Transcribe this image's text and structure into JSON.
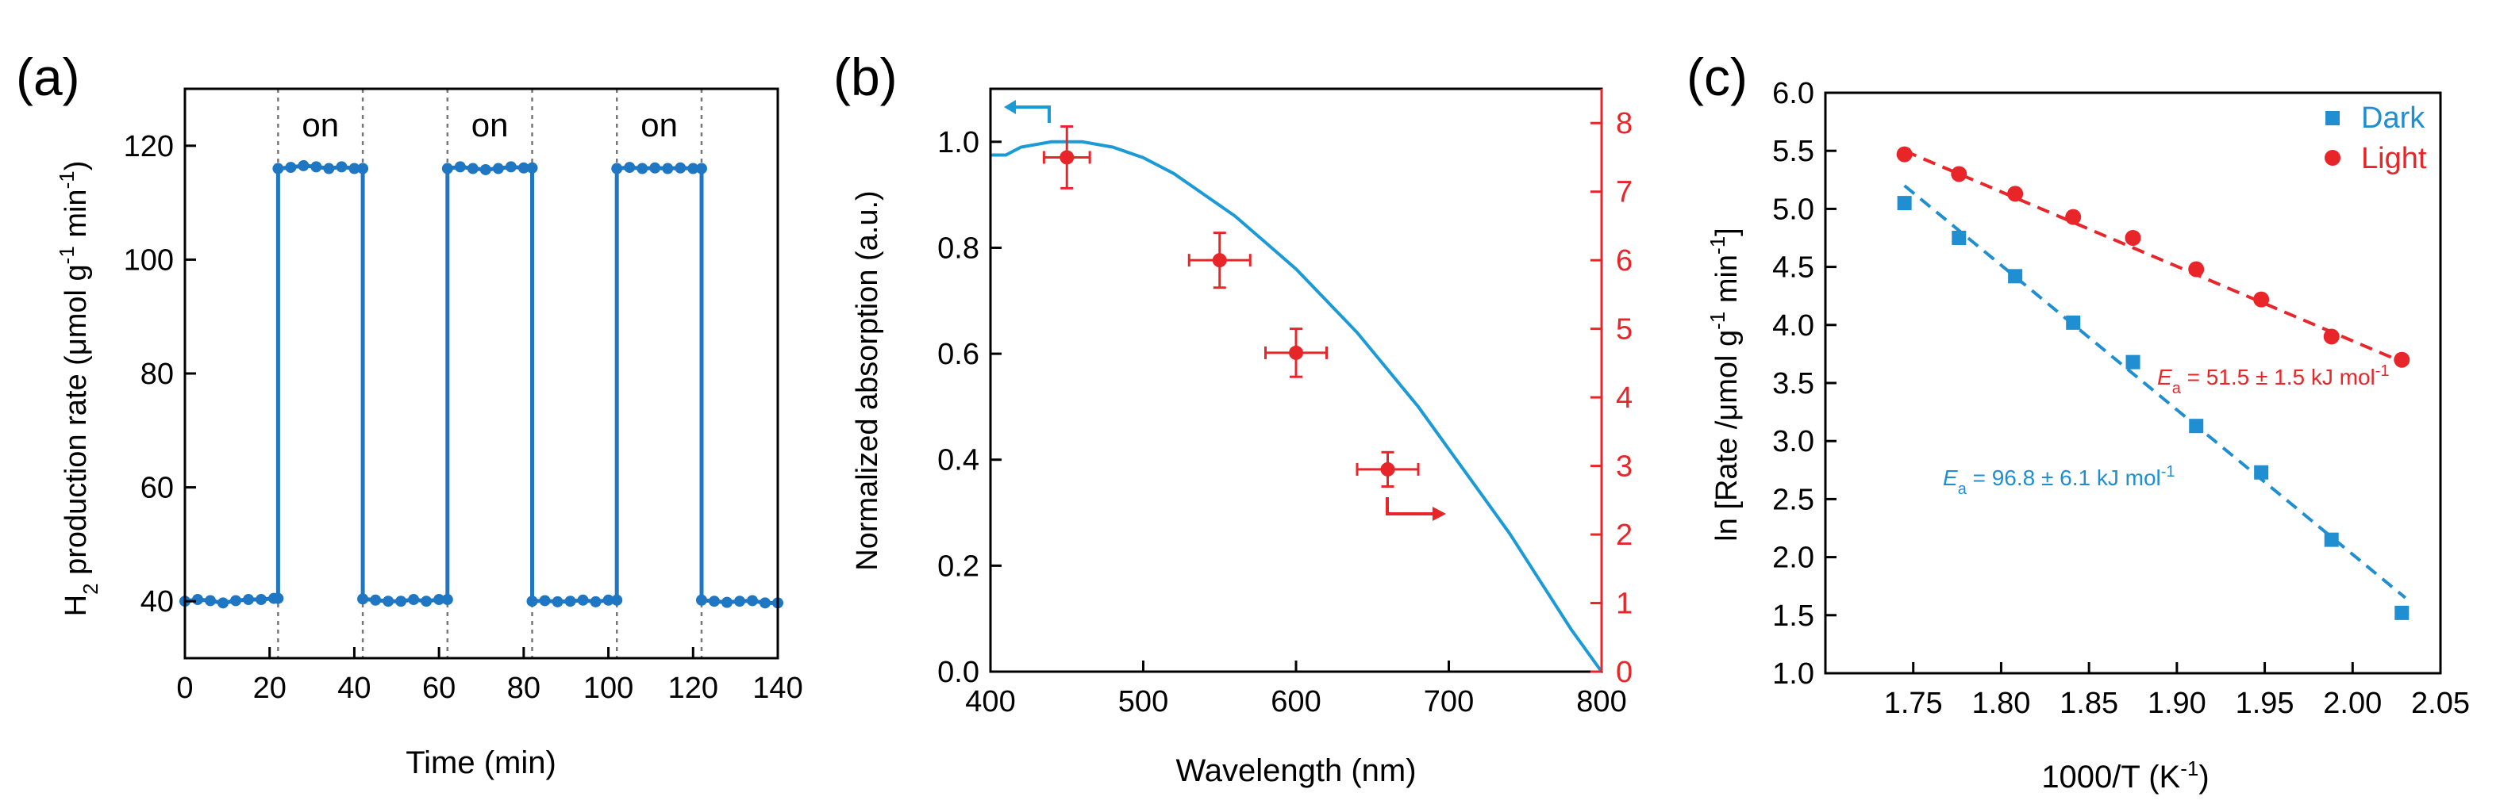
{
  "chart_data": [
    {
      "panel_label": "(a)",
      "type": "line",
      "xlabel": "Time (min)",
      "ylabel_prefix": "H",
      "ylabel_sub": "2",
      "ylabel_main": " production rate (μmol g",
      "ylabel_sup1": "-1",
      "ylabel_mid": " min",
      "ylabel_sup2": "-1",
      "ylabel_end": ")",
      "xlim": [
        0,
        140
      ],
      "ylim": [
        30,
        130
      ],
      "xticks": [
        0,
        20,
        40,
        60,
        80,
        100,
        120,
        140
      ],
      "yticks": [
        40,
        60,
        80,
        100,
        120
      ],
      "on_label": "on",
      "on_intervals": [
        [
          22,
          42
        ],
        [
          62,
          82
        ],
        [
          102,
          122
        ]
      ],
      "divider_x": [
        22,
        42,
        62,
        82,
        102,
        122
      ],
      "series": [
        {
          "name": "H2 production rate",
          "color": "#1f77c4",
          "points": [
            [
              0,
              40
            ],
            [
              3,
              40.3
            ],
            [
              6,
              40.1
            ],
            [
              9,
              39.7
            ],
            [
              12,
              40.1
            ],
            [
              15,
              40.3
            ],
            [
              18,
              40.3
            ],
            [
              21,
              40.5
            ],
            [
              22,
              40.5
            ],
            [
              22,
              116
            ],
            [
              25,
              116.2
            ],
            [
              28,
              116.5
            ],
            [
              31,
              116.3
            ],
            [
              34,
              116
            ],
            [
              37,
              116.3
            ],
            [
              40,
              116
            ],
            [
              42,
              116
            ],
            [
              42,
              40.4
            ],
            [
              45,
              40.2
            ],
            [
              48,
              40
            ],
            [
              51,
              40
            ],
            [
              54,
              40.3
            ],
            [
              57,
              40
            ],
            [
              60,
              40.3
            ],
            [
              62,
              40.3
            ],
            [
              62,
              116
            ],
            [
              65,
              116.3
            ],
            [
              68,
              116
            ],
            [
              71,
              115.8
            ],
            [
              74,
              116
            ],
            [
              77,
              116.3
            ],
            [
              80,
              116.1
            ],
            [
              82,
              116.1
            ],
            [
              82,
              40
            ],
            [
              85,
              40.1
            ],
            [
              88,
              39.9
            ],
            [
              91,
              40
            ],
            [
              94,
              40.2
            ],
            [
              97,
              39.9
            ],
            [
              100,
              40.2
            ],
            [
              102,
              40.2
            ],
            [
              102,
              116
            ],
            [
              105,
              116.2
            ],
            [
              108,
              116
            ],
            [
              111,
              116.1
            ],
            [
              114,
              116
            ],
            [
              117,
              116.1
            ],
            [
              120,
              116
            ],
            [
              122,
              116
            ],
            [
              122,
              40.2
            ],
            [
              125,
              40
            ],
            [
              128,
              39.8
            ],
            [
              131,
              40
            ],
            [
              134,
              40.1
            ],
            [
              137,
              39.7
            ],
            [
              140,
              39.7
            ]
          ]
        }
      ]
    },
    {
      "panel_label": "(b)",
      "type": "line+scatter",
      "xlabel": "Wavelength (nm)",
      "ylabel_left": "Normalized absorption (a.u.)",
      "xlim": [
        400,
        800
      ],
      "ylim_left": [
        0,
        1.1
      ],
      "ylim_right": [
        0,
        8.5
      ],
      "xticks": [
        400,
        500,
        600,
        700,
        800
      ],
      "yticks_left": [
        "0.0",
        "0.2",
        "0.4",
        "0.6",
        "0.8",
        "1.0"
      ],
      "yticks_right": [
        0,
        1,
        2,
        3,
        4,
        5,
        6,
        7,
        8
      ],
      "left_color": "#1a9ad6",
      "right_color": "#e8262a",
      "absorption_curve": {
        "name": "Normalized absorption",
        "color": "#1a9ad6",
        "points": [
          [
            400,
            0.975
          ],
          [
            410,
            0.975
          ],
          [
            420,
            0.99
          ],
          [
            440,
            1.0
          ],
          [
            460,
            1.0
          ],
          [
            480,
            0.99
          ],
          [
            500,
            0.97
          ],
          [
            520,
            0.94
          ],
          [
            540,
            0.9
          ],
          [
            560,
            0.86
          ],
          [
            580,
            0.81
          ],
          [
            600,
            0.76
          ],
          [
            620,
            0.7
          ],
          [
            640,
            0.64
          ],
          [
            660,
            0.57
          ],
          [
            680,
            0.5
          ],
          [
            700,
            0.42
          ],
          [
            720,
            0.34
          ],
          [
            740,
            0.26
          ],
          [
            760,
            0.17
          ],
          [
            780,
            0.08
          ],
          [
            800,
            0.0
          ]
        ]
      },
      "scatter_points": [
        {
          "x": 450,
          "y": 7.5,
          "xerr": 15,
          "yerr": 0.45
        },
        {
          "x": 550,
          "y": 6.0,
          "xerr": 20,
          "yerr": 0.4
        },
        {
          "x": 600,
          "y": 4.65,
          "xerr": 20,
          "yerr": 0.35
        },
        {
          "x": 660,
          "y": 2.95,
          "xerr": 20,
          "yerr": 0.25
        }
      ]
    },
    {
      "panel_label": "(c)",
      "type": "scatter",
      "xlabel": "1000/T (K",
      "xlabel_sup": "-1",
      "xlabel_end": ")",
      "ylabel_main": "ln [Rate /μmol g",
      "ylabel_sup1": "-1",
      "ylabel_mid": " min",
      "ylabel_sup2": "-1",
      "ylabel_end": "]",
      "xlim": [
        1.7,
        2.05
      ],
      "ylim": [
        1.0,
        6.0
      ],
      "xticks": [
        "1.75",
        "1.80",
        "1.85",
        "1.90",
        "1.95",
        "2.00",
        "2.05"
      ],
      "yticks": [
        "1.0",
        "1.5",
        "2.0",
        "2.5",
        "3.0",
        "3.5",
        "4.0",
        "4.5",
        "5.0",
        "5.5",
        "6.0"
      ],
      "series": [
        {
          "name": "Dark",
          "color": "#1f8fd1",
          "marker": "square",
          "x": [
            1.745,
            1.776,
            1.808,
            1.841,
            1.875,
            1.911,
            1.948,
            1.988,
            2.028
          ],
          "y": [
            5.05,
            4.75,
            4.42,
            4.02,
            3.68,
            3.13,
            2.73,
            2.15,
            1.52
          ],
          "fit": [
            [
              1.745,
              5.2
            ],
            [
              2.03,
              1.65
            ]
          ],
          "annotation_symbol": "E",
          "annotation_sub": "a",
          "annotation_text": " = 96.8 ± 6.1 kJ mol",
          "annotation_sup": "-1"
        },
        {
          "name": "Light",
          "color": "#e8262a",
          "marker": "circle",
          "x": [
            1.745,
            1.776,
            1.808,
            1.841,
            1.875,
            1.911,
            1.948,
            1.988,
            2.028
          ],
          "y": [
            5.47,
            5.3,
            5.13,
            4.93,
            4.75,
            4.48,
            4.22,
            3.9,
            3.7
          ],
          "fit": [
            [
              1.745,
              5.5
            ],
            [
              2.03,
              3.67
            ]
          ],
          "annotation_symbol": "E",
          "annotation_sub": "a",
          "annotation_text": " = 51.5 ± 1.5 kJ mol",
          "annotation_sup": "-1"
        }
      ],
      "legend_position": "top-right"
    }
  ]
}
